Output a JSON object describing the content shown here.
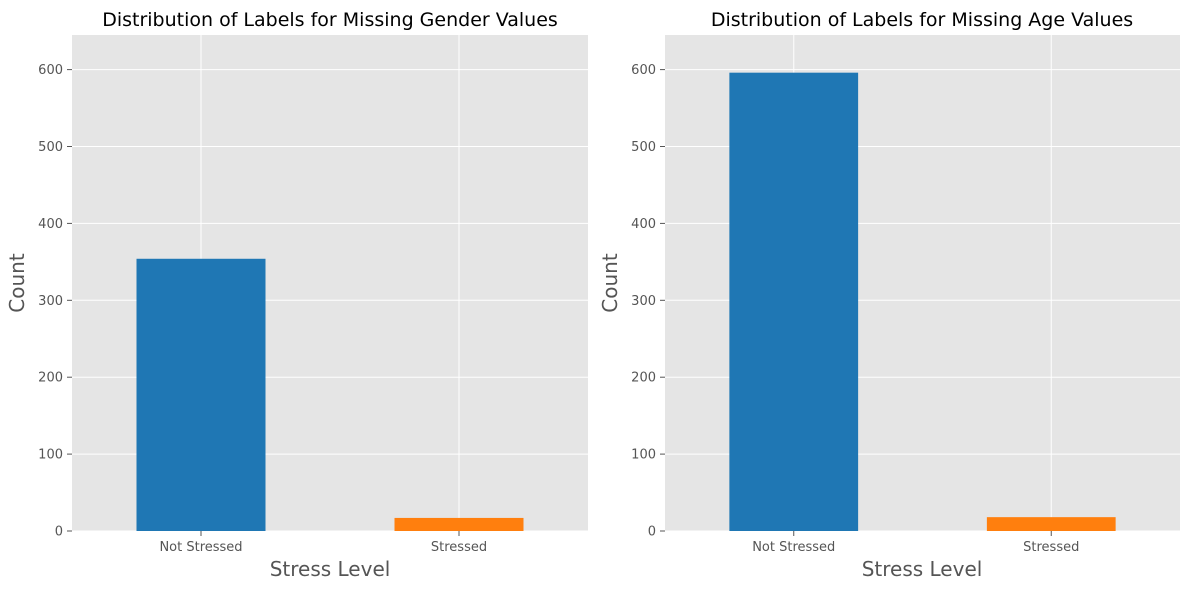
{
  "chart_data": [
    {
      "type": "bar",
      "title": "Distribution of Labels for Missing Gender Values",
      "xlabel": "Stress Level",
      "ylabel": "Count",
      "categories": [
        "Not Stressed",
        "Stressed"
      ],
      "values": [
        354,
        17
      ],
      "colors": [
        "#1f77b4",
        "#ff7f0e"
      ],
      "ylim": [
        0,
        645
      ],
      "yticks": [
        0,
        100,
        200,
        300,
        400,
        500,
        600
      ],
      "grid": true,
      "background": "#e5e5e5"
    },
    {
      "type": "bar",
      "title": "Distribution of Labels for Missing Age Values",
      "xlabel": "Stress Level",
      "ylabel": "Count",
      "categories": [
        "Not Stressed",
        "Stressed"
      ],
      "values": [
        596,
        18
      ],
      "colors": [
        "#1f77b4",
        "#ff7f0e"
      ],
      "ylim": [
        0,
        645
      ],
      "yticks": [
        0,
        100,
        200,
        300,
        400,
        500,
        600
      ],
      "grid": true,
      "background": "#e5e5e5"
    }
  ]
}
